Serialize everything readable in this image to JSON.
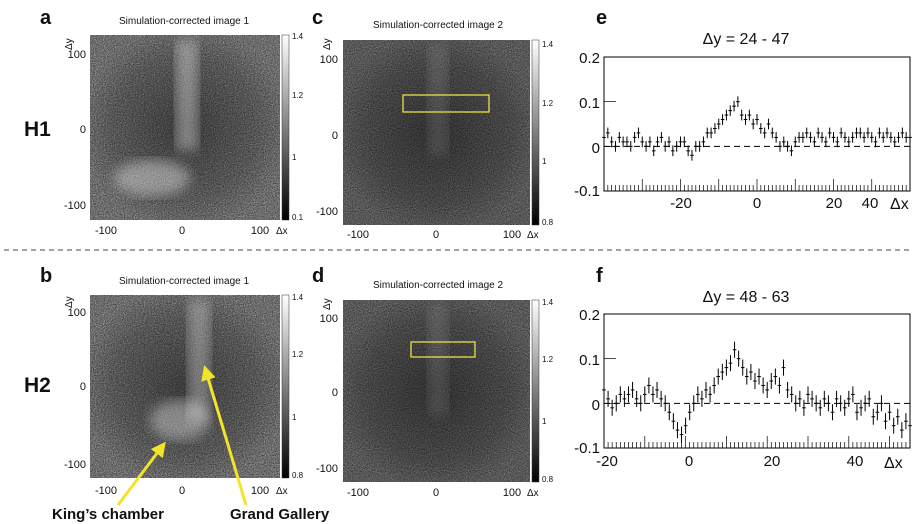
{
  "rows": [
    {
      "row_label": "H1",
      "left": {
        "panel_letter": "a",
        "title": "Simulation-corrected image 1",
        "x_ticks": [
          "-100",
          "0",
          "100"
        ],
        "y_ticks": [
          "100",
          "0",
          "-100"
        ],
        "x_axis_label": "Δx",
        "y_axis_label": "Δy",
        "colorbar_ticks": [
          "1.4",
          "1.2",
          "1",
          "0.1"
        ]
      },
      "middle": {
        "panel_letter": "c",
        "title": "Simulation-corrected image 2",
        "x_ticks": [
          "-100",
          "0",
          "100"
        ],
        "y_ticks": [
          "100",
          "0",
          "-100"
        ],
        "x_axis_label": "Δx",
        "y_axis_label": "Δy",
        "colorbar_ticks": [
          "1.4",
          "1.2",
          "1",
          "0.8"
        ]
      },
      "profile": {
        "panel_letter": "e",
        "title": "Δy = 24 - 47",
        "y_ticks": [
          "0.2",
          "0.1",
          "0",
          "-0.1"
        ],
        "x_ticks": [
          "-20",
          "0",
          "20",
          "40"
        ],
        "x_axis_label": "Δx"
      }
    },
    {
      "row_label": "H2",
      "left": {
        "panel_letter": "b",
        "title": "Simulation-corrected image 1",
        "x_ticks": [
          "-100",
          "0",
          "100"
        ],
        "y_ticks": [
          "100",
          "0",
          "-100"
        ],
        "x_axis_label": "Δx",
        "y_axis_label": "Δy",
        "colorbar_ticks": [
          "1.4",
          "1.2",
          "1",
          "0.8"
        ]
      },
      "middle": {
        "panel_letter": "d",
        "title": "Simulation-corrected image 2",
        "x_ticks": [
          "-100",
          "0",
          "100"
        ],
        "y_ticks": [
          "100",
          "0",
          "-100"
        ],
        "x_axis_label": "Δx",
        "y_axis_label": "Δy",
        "colorbar_ticks": [
          "1.4",
          "1.2",
          "1",
          "0.8"
        ]
      },
      "profile": {
        "panel_letter": "f",
        "title": "Δy = 48 - 63",
        "y_ticks": [
          "0.2",
          "0.1",
          "0",
          "-0.1"
        ],
        "x_ticks": [
          "-20",
          "0",
          "20",
          "40"
        ],
        "x_axis_label": "Δx"
      }
    }
  ],
  "annotations": {
    "kings_chamber": "King’s chamber",
    "grand_gallery": "Grand Gallery",
    "arrow_color": "#f2e42a"
  },
  "highlight_color": "#e8e04a",
  "chart_data": [
    {
      "type": "scatter",
      "panel": "e",
      "title": "Δy = 24 - 47",
      "xlabel": "Δx",
      "ylabel": "",
      "xlim": [
        -30,
        50
      ],
      "ylim": [
        -0.1,
        0.2
      ],
      "reference_line_y": 0,
      "x": [
        -30,
        -29,
        -28,
        -27,
        -26,
        -25,
        -24,
        -23,
        -22,
        -21,
        -20,
        -19,
        -18,
        -17,
        -16,
        -15,
        -14,
        -13,
        -12,
        -11,
        -10,
        -9,
        -8,
        -7,
        -6,
        -5,
        -4,
        -3,
        -2,
        -1,
        0,
        1,
        2,
        3,
        4,
        5,
        6,
        7,
        8,
        9,
        10,
        11,
        12,
        13,
        14,
        15,
        16,
        17,
        18,
        19,
        20,
        21,
        22,
        23,
        24,
        25,
        26,
        27,
        28,
        29,
        30,
        31,
        32,
        33,
        34,
        35,
        36,
        37,
        38,
        39,
        40,
        41,
        42,
        43,
        44,
        45,
        46,
        47,
        48,
        49,
        50
      ],
      "y": [
        0.02,
        0.03,
        0.01,
        0.0,
        0.02,
        0.01,
        0.01,
        0.0,
        0.02,
        0.03,
        0.01,
        0.0,
        0.01,
        -0.01,
        0.01,
        0.02,
        0.0,
        0.01,
        -0.01,
        0.0,
        0.01,
        0.01,
        -0.01,
        -0.02,
        0.0,
        0.0,
        0.01,
        0.03,
        0.03,
        0.04,
        0.05,
        0.06,
        0.07,
        0.08,
        0.09,
        0.1,
        0.07,
        0.06,
        0.07,
        0.05,
        0.06,
        0.04,
        0.03,
        0.05,
        0.03,
        0.02,
        0.0,
        0.01,
        0.0,
        -0.01,
        0.01,
        0.02,
        0.02,
        0.03,
        0.02,
        0.01,
        0.03,
        0.02,
        0.01,
        0.03,
        0.02,
        0.01,
        0.03,
        0.02,
        0.01,
        0.02,
        0.03,
        0.03,
        0.02,
        0.03,
        0.02,
        0.01,
        0.03,
        0.02,
        0.03,
        0.02,
        0.01,
        0.02,
        0.03,
        0.02,
        0.02
      ],
      "yerr": 0.012
    },
    {
      "type": "scatter",
      "panel": "f",
      "title": "Δy = 48 - 63",
      "xlabel": "Δx",
      "ylabel": "",
      "xlim": [
        -20,
        55
      ],
      "ylim": [
        -0.1,
        0.2
      ],
      "reference_line_y": 0,
      "x": [
        -20,
        -19,
        -18,
        -17,
        -16,
        -15,
        -14,
        -13,
        -12,
        -11,
        -10,
        -9,
        -8,
        -7,
        -6,
        -5,
        -4,
        -3,
        -2,
        -1,
        0,
        1,
        2,
        3,
        4,
        5,
        6,
        7,
        8,
        9,
        10,
        11,
        12,
        13,
        14,
        15,
        16,
        17,
        18,
        19,
        20,
        21,
        22,
        23,
        24,
        25,
        26,
        27,
        28,
        29,
        30,
        31,
        32,
        33,
        34,
        35,
        36,
        37,
        38,
        39,
        40,
        41,
        42,
        43,
        44,
        45,
        46,
        47,
        48,
        49,
        50,
        51,
        52,
        53,
        54,
        55
      ],
      "y": [
        0.03,
        0.01,
        -0.01,
        0.0,
        0.02,
        0.01,
        0.02,
        0.03,
        0.01,
        0.0,
        0.02,
        0.04,
        0.02,
        0.03,
        0.01,
        0.0,
        -0.02,
        -0.04,
        -0.06,
        -0.07,
        -0.05,
        -0.02,
        0.0,
        0.02,
        0.01,
        0.03,
        0.02,
        0.04,
        0.06,
        0.07,
        0.08,
        0.09,
        0.12,
        0.1,
        0.08,
        0.06,
        0.07,
        0.05,
        0.06,
        0.04,
        0.03,
        0.05,
        0.06,
        0.04,
        0.08,
        0.03,
        0.02,
        0.0,
        0.01,
        -0.01,
        0.02,
        0.01,
        0.0,
        -0.01,
        0.01,
        0.0,
        -0.02,
        0.01,
        0.0,
        -0.01,
        0.01,
        0.02,
        -0.02,
        -0.01,
        0.0,
        0.01,
        -0.03,
        -0.02,
        0.0,
        -0.04,
        -0.02,
        -0.05,
        -0.03,
        -0.06,
        -0.04,
        -0.05
      ],
      "yerr": 0.018
    }
  ]
}
